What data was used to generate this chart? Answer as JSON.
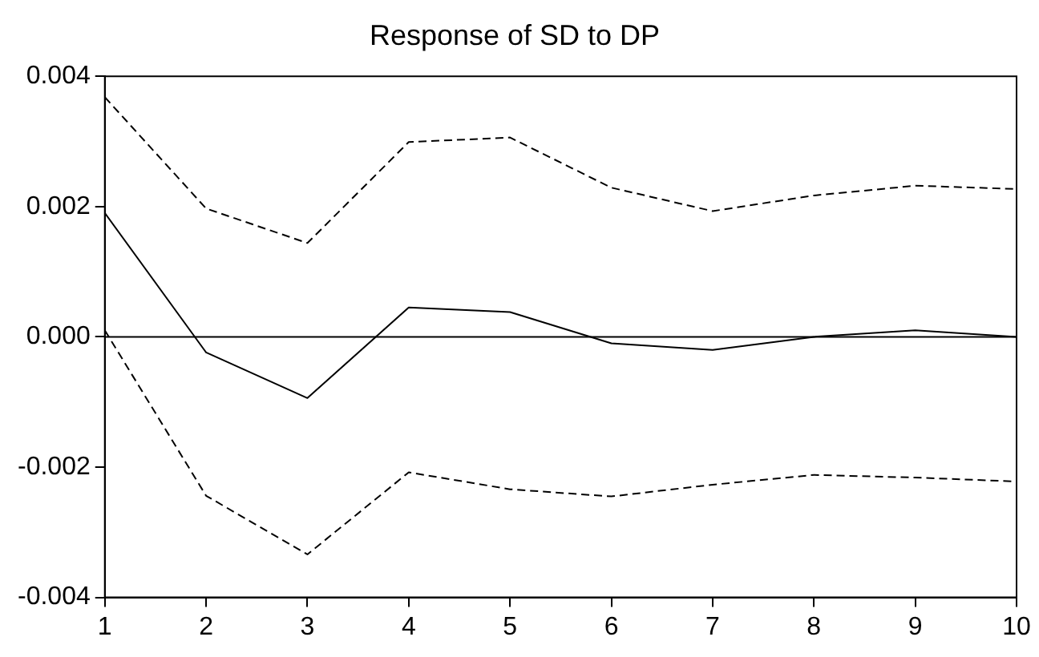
{
  "chart_data": {
    "type": "line",
    "title": "Response of SD to DP",
    "x": [
      1,
      2,
      3,
      4,
      5,
      6,
      7,
      8,
      9,
      10
    ],
    "series": [
      {
        "color": "#000000",
        "line_style": "solid",
        "values": [
          0.0019,
          -0.00024,
          -0.00094,
          0.00045,
          0.00038,
          -0.0001,
          -0.0002,
          0,
          0.0001,
          0
        ]
      },
      {
        "color": "#000000",
        "line_style": "dashed",
        "values": [
          0.00368,
          0.00197,
          0.00144,
          0.00299,
          0.00306,
          0.00229,
          0.00193,
          0.00217,
          0.00232,
          0.00227
        ]
      },
      {
        "color": "#000000",
        "line_style": "dashed",
        "values": [
          0.0001,
          -0.00244,
          -0.00334,
          -0.00208,
          -0.00234,
          -0.00245,
          -0.00227,
          -0.00212,
          -0.00216,
          -0.00222
        ]
      }
    ],
    "xlim": [
      1,
      10
    ],
    "xticks": [
      1,
      2,
      3,
      4,
      5,
      6,
      7,
      8,
      9,
      10
    ],
    "ylim": [
      -0.004,
      0.004
    ],
    "yticks": [
      {
        "value": -0.004,
        "label": "-0.004"
      },
      {
        "value": -0.002,
        "label": "-0.002"
      },
      {
        "value": 0,
        "label": "0.000"
      },
      {
        "value": 0.002,
        "label": "0.002"
      },
      {
        "value": 0.004,
        "label": "0.004"
      }
    ],
    "ref_lines": [
      {
        "axis": "y",
        "value": 0,
        "color": "#000000"
      }
    ],
    "grid": false,
    "legend": false,
    "marker": "none"
  }
}
